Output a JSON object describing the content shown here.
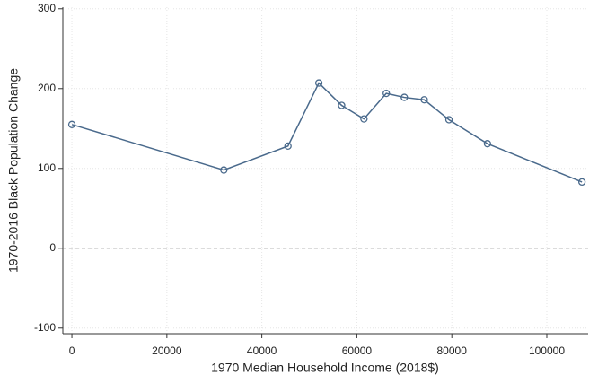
{
  "chart_data": {
    "type": "line",
    "x_label": "1970 Median Household Income (2018$)",
    "y_label": "1970-2016 Black Population Change",
    "x": [
      0,
      32000,
      45500,
      52000,
      56800,
      61500,
      66200,
      70000,
      74200,
      79400,
      87500,
      107400
    ],
    "series": [
      {
        "color": "#4a6a8c",
        "values": [
          155,
          98,
          128,
          207,
          179,
          162,
          194,
          189,
          186,
          161,
          131,
          83
        ]
      }
    ],
    "xlim": [
      -1900,
      108700
    ],
    "ylim": [
      -107,
      302
    ],
    "xticks": [
      0,
      20000,
      40000,
      60000,
      80000,
      100000
    ],
    "yticks": [
      -100,
      0,
      100,
      200,
      300
    ],
    "grid": true,
    "reference_line": 0
  }
}
